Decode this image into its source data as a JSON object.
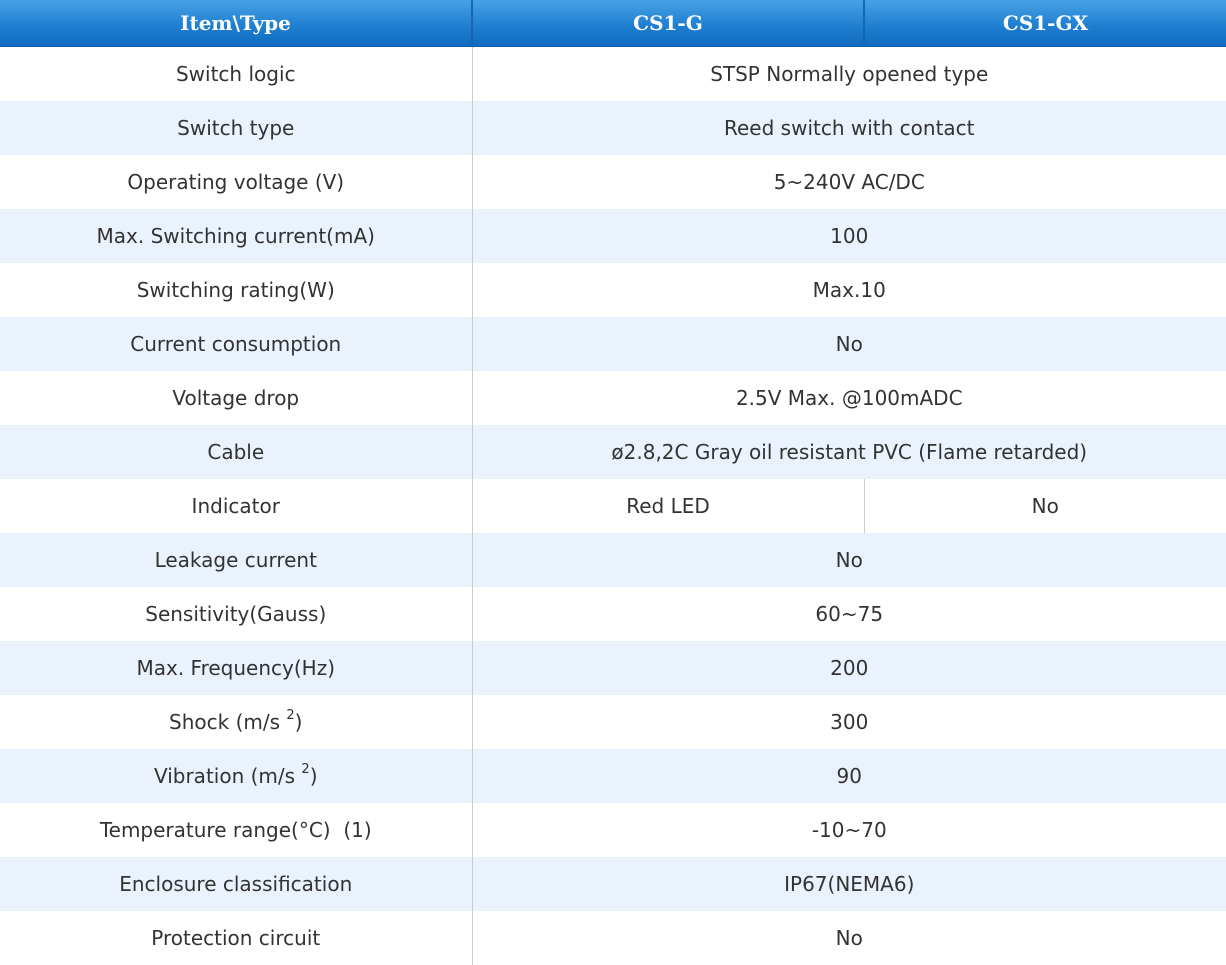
{
  "header": {
    "item_type": "Item\\Type",
    "model_1": "CS1-G",
    "model_2": "CS1-GX"
  },
  "rows": [
    {
      "item": "Switch logic",
      "value": "STSP Normally opened type"
    },
    {
      "item": "Switch type",
      "value": "Reed switch with contact"
    },
    {
      "item": "Operating voltage (V)",
      "value": "5~240V AC/DC"
    },
    {
      "item": "Max. Switching current(mA)",
      "value": "100"
    },
    {
      "item": "Switching rating(W)",
      "value": "Max.10"
    },
    {
      "item": "Current consumption",
      "value": "No"
    },
    {
      "item": "Voltage drop",
      "value": "2.5V Max. @100mADC"
    },
    {
      "item": "Cable",
      "value": "ø2.8,2C Gray oil resistant PVC (Flame retarded)"
    },
    {
      "item": "Indicator",
      "value_1": "Red LED",
      "value_2": "No"
    },
    {
      "item": "Leakage current",
      "value": "No"
    },
    {
      "item": "Sensitivity(Gauss)",
      "value": "60~75"
    },
    {
      "item": "Max. Frequency(Hz)",
      "value": "200"
    },
    {
      "item": "Shock (m/s ",
      "sup": "2",
      "item_suffix": ")",
      "value": "300"
    },
    {
      "item": "Vibration (m/s ",
      "sup": "2",
      "item_suffix": ")",
      "value": "90"
    },
    {
      "item": "Temperature range(°C)  (1)",
      "value": "-10~70"
    },
    {
      "item": "Enclosure classification",
      "value": "IP67(NEMA6)"
    },
    {
      "item": "Protection circuit",
      "value": "No"
    }
  ]
}
